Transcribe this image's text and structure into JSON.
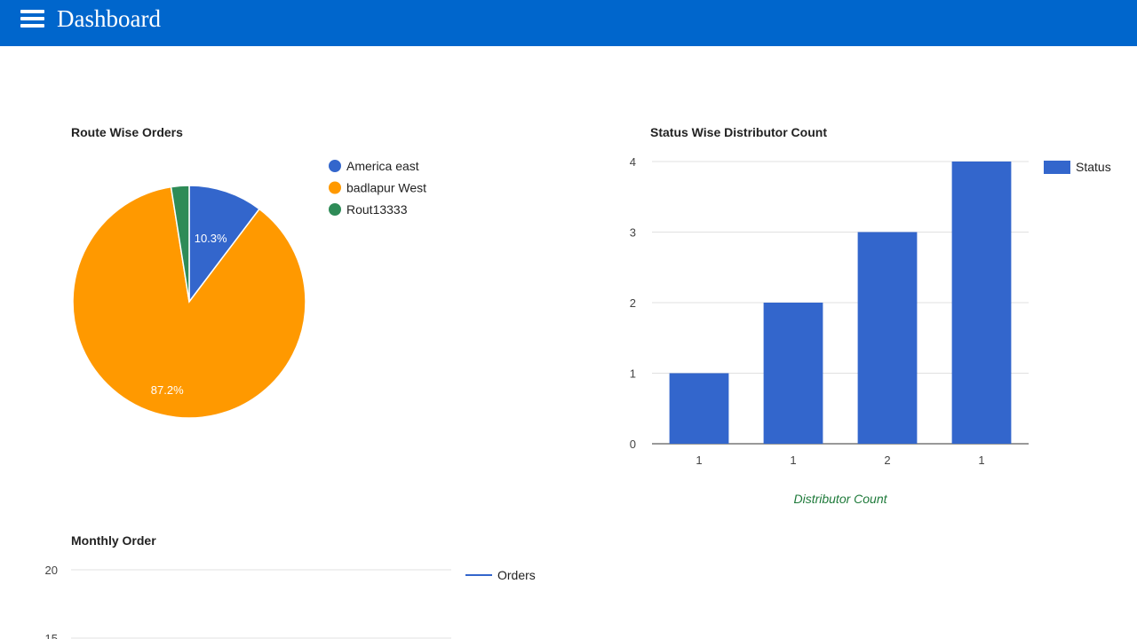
{
  "header": {
    "title": "Dashboard",
    "menu_icon": "hamburger-menu-icon",
    "background": "#0066cc"
  },
  "charts": {
    "route": {
      "title": "Route Wise Orders",
      "chart_data": {
        "type": "pie",
        "title": "Route Wise Orders",
        "labels": [
          "America east",
          "badlapur West",
          "Rout13333"
        ],
        "values": [
          10.3,
          87.2,
          2.5
        ],
        "display_labels": [
          "10.3%",
          "87.2%",
          ""
        ],
        "colors": [
          "#3366cc",
          "#ff9900",
          "#2e8b57"
        ],
        "legend": "right"
      }
    },
    "status": {
      "title": "Status Wise Distributor Count",
      "chart_data": {
        "type": "bar",
        "title": "Status Wise Distributor Count",
        "categories": [
          "1",
          "1",
          "2",
          "1"
        ],
        "series": [
          {
            "name": "Status",
            "values": [
              1,
              2,
              3,
              4
            ]
          }
        ],
        "xlabel": "Distributor Count",
        "ylabel": "",
        "ylim": [
          0,
          4
        ],
        "yticks": [
          0,
          1,
          2,
          3,
          4
        ],
        "grid": true,
        "legend": "right",
        "color": "#3366cc"
      }
    },
    "monthly": {
      "title": "Monthly Order",
      "chart_data": {
        "type": "line",
        "title": "Monthly Order",
        "series": [
          {
            "name": "Orders",
            "values": []
          }
        ],
        "yticks": [
          20,
          15
        ],
        "grid": true,
        "legend": "right",
        "color": "#3366cc"
      }
    }
  }
}
